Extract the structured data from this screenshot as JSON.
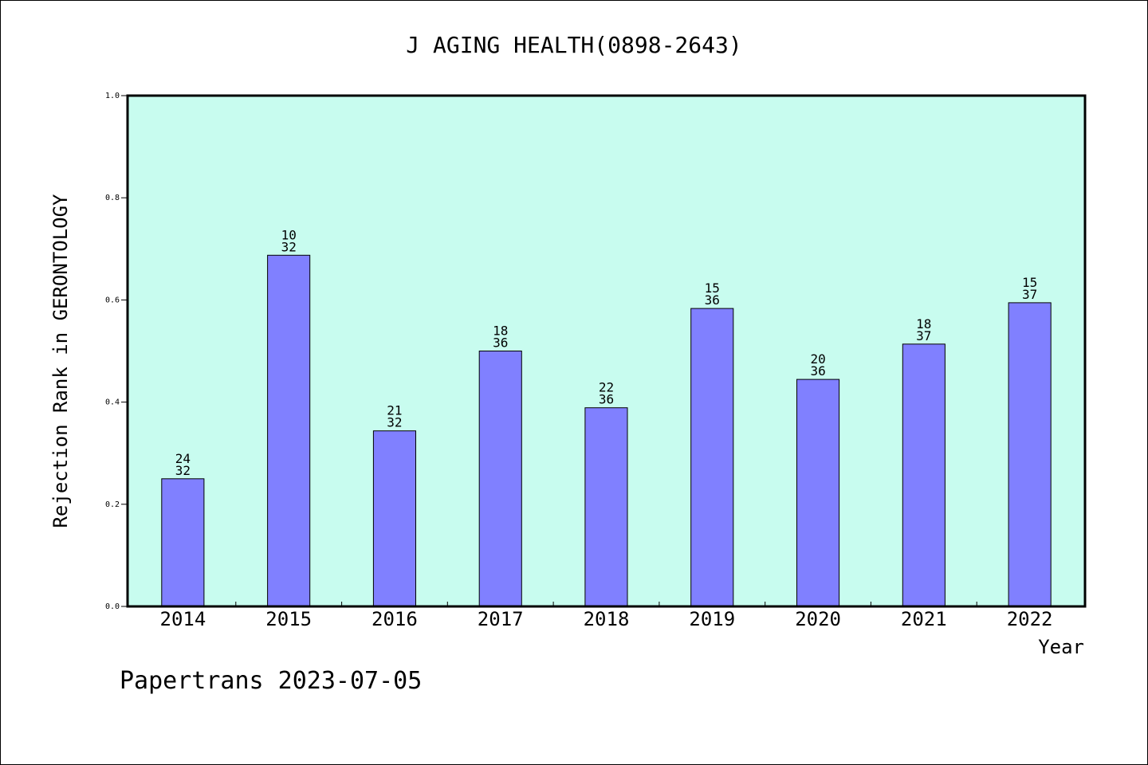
{
  "chart_data": {
    "type": "bar",
    "title": "J AGING HEALTH(0898-2643)",
    "xlabel": "Year",
    "ylabel": "Rejection Rank in GERONTOLOGY",
    "ylim": [
      0,
      1.0
    ],
    "yticks": [
      "0.0",
      "0.2",
      "0.4",
      "0.6",
      "0.8",
      "1.0"
    ],
    "categories": [
      "2014",
      "2015",
      "2016",
      "2017",
      "2018",
      "2019",
      "2020",
      "2021",
      "2022"
    ],
    "values": [
      0.25,
      0.6875,
      0.34375,
      0.5,
      0.3889,
      0.5833,
      0.4444,
      0.5135,
      0.5946
    ],
    "data_labels": [
      {
        "rank": "24",
        "total": "32"
      },
      {
        "rank": "10",
        "total": "32"
      },
      {
        "rank": "21",
        "total": "32"
      },
      {
        "rank": "18",
        "total": "36"
      },
      {
        "rank": "22",
        "total": "36"
      },
      {
        "rank": "15",
        "total": "36"
      },
      {
        "rank": "20",
        "total": "36"
      },
      {
        "rank": "18",
        "total": "37"
      },
      {
        "rank": "15",
        "total": "37"
      }
    ],
    "grid": false,
    "colors": {
      "plot_background": "#c8fcef",
      "bar_fill": "#8080ff",
      "bar_stroke": "#000000",
      "axis": "#000000"
    }
  },
  "footer": {
    "credit": "Papertrans 2023-07-05"
  }
}
